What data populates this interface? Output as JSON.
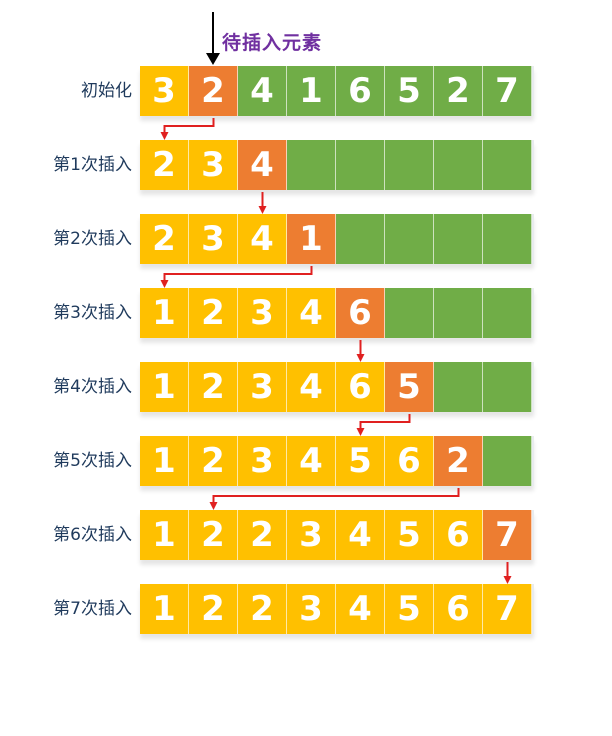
{
  "pointer_label": "待插入元素",
  "colors": {
    "sorted": "#ffc000",
    "current": "#ed7d31",
    "unsorted": "#70ad47",
    "arrow": "#e02020",
    "pointer": "#000000"
  },
  "rows": [
    {
      "label": "初始化",
      "cells": [
        {
          "v": "3",
          "s": "sorted"
        },
        {
          "v": "2",
          "s": "current"
        },
        {
          "v": "4",
          "s": "unsorted"
        },
        {
          "v": "1",
          "s": "unsorted"
        },
        {
          "v": "6",
          "s": "unsorted"
        },
        {
          "v": "5",
          "s": "unsorted"
        },
        {
          "v": "2",
          "s": "unsorted"
        },
        {
          "v": "7",
          "s": "unsorted"
        }
      ]
    },
    {
      "label": "第1次插入",
      "cells": [
        {
          "v": "2",
          "s": "sorted"
        },
        {
          "v": "3",
          "s": "sorted"
        },
        {
          "v": "4",
          "s": "current"
        },
        {
          "v": "",
          "s": "empty"
        },
        {
          "v": "",
          "s": "empty"
        },
        {
          "v": "",
          "s": "empty"
        },
        {
          "v": "",
          "s": "empty"
        },
        {
          "v": "",
          "s": "empty"
        }
      ]
    },
    {
      "label": "第2次插入",
      "cells": [
        {
          "v": "2",
          "s": "sorted"
        },
        {
          "v": "3",
          "s": "sorted"
        },
        {
          "v": "4",
          "s": "sorted"
        },
        {
          "v": "1",
          "s": "current"
        },
        {
          "v": "",
          "s": "empty"
        },
        {
          "v": "",
          "s": "empty"
        },
        {
          "v": "",
          "s": "empty"
        },
        {
          "v": "",
          "s": "empty"
        }
      ]
    },
    {
      "label": "第3次插入",
      "cells": [
        {
          "v": "1",
          "s": "sorted"
        },
        {
          "v": "2",
          "s": "sorted"
        },
        {
          "v": "3",
          "s": "sorted"
        },
        {
          "v": "4",
          "s": "sorted"
        },
        {
          "v": "6",
          "s": "current"
        },
        {
          "v": "",
          "s": "empty"
        },
        {
          "v": "",
          "s": "empty"
        },
        {
          "v": "",
          "s": "empty"
        }
      ]
    },
    {
      "label": "第4次插入",
      "cells": [
        {
          "v": "1",
          "s": "sorted"
        },
        {
          "v": "2",
          "s": "sorted"
        },
        {
          "v": "3",
          "s": "sorted"
        },
        {
          "v": "4",
          "s": "sorted"
        },
        {
          "v": "6",
          "s": "sorted"
        },
        {
          "v": "5",
          "s": "current"
        },
        {
          "v": "",
          "s": "empty"
        },
        {
          "v": "",
          "s": "empty"
        }
      ]
    },
    {
      "label": "第5次插入",
      "cells": [
        {
          "v": "1",
          "s": "sorted"
        },
        {
          "v": "2",
          "s": "sorted"
        },
        {
          "v": "3",
          "s": "sorted"
        },
        {
          "v": "4",
          "s": "sorted"
        },
        {
          "v": "5",
          "s": "sorted"
        },
        {
          "v": "6",
          "s": "sorted"
        },
        {
          "v": "2",
          "s": "current"
        },
        {
          "v": "",
          "s": "empty"
        }
      ]
    },
    {
      "label": "第6次插入",
      "cells": [
        {
          "v": "1",
          "s": "sorted"
        },
        {
          "v": "2",
          "s": "sorted"
        },
        {
          "v": "2",
          "s": "sorted"
        },
        {
          "v": "3",
          "s": "sorted"
        },
        {
          "v": "4",
          "s": "sorted"
        },
        {
          "v": "5",
          "s": "sorted"
        },
        {
          "v": "6",
          "s": "sorted"
        },
        {
          "v": "7",
          "s": "current"
        }
      ]
    },
    {
      "label": "第7次插入",
      "cells": [
        {
          "v": "1",
          "s": "sorted"
        },
        {
          "v": "2",
          "s": "sorted"
        },
        {
          "v": "2",
          "s": "sorted"
        },
        {
          "v": "3",
          "s": "sorted"
        },
        {
          "v": "4",
          "s": "sorted"
        },
        {
          "v": "5",
          "s": "sorted"
        },
        {
          "v": "6",
          "s": "sorted"
        },
        {
          "v": "7",
          "s": "sorted"
        }
      ]
    }
  ],
  "moves": [
    {
      "from_row": 0,
      "from_col": 1,
      "to_row": 1,
      "to_col": 0
    },
    {
      "from_row": 1,
      "from_col": 2,
      "to_row": 2,
      "to_col": 2
    },
    {
      "from_row": 2,
      "from_col": 3,
      "to_row": 3,
      "to_col": 0
    },
    {
      "from_row": 3,
      "from_col": 4,
      "to_row": 4,
      "to_col": 4
    },
    {
      "from_row": 4,
      "from_col": 5,
      "to_row": 5,
      "to_col": 4
    },
    {
      "from_row": 5,
      "from_col": 6,
      "to_row": 6,
      "to_col": 1
    },
    {
      "from_row": 6,
      "from_col": 7,
      "to_row": 7,
      "to_col": 7
    }
  ]
}
